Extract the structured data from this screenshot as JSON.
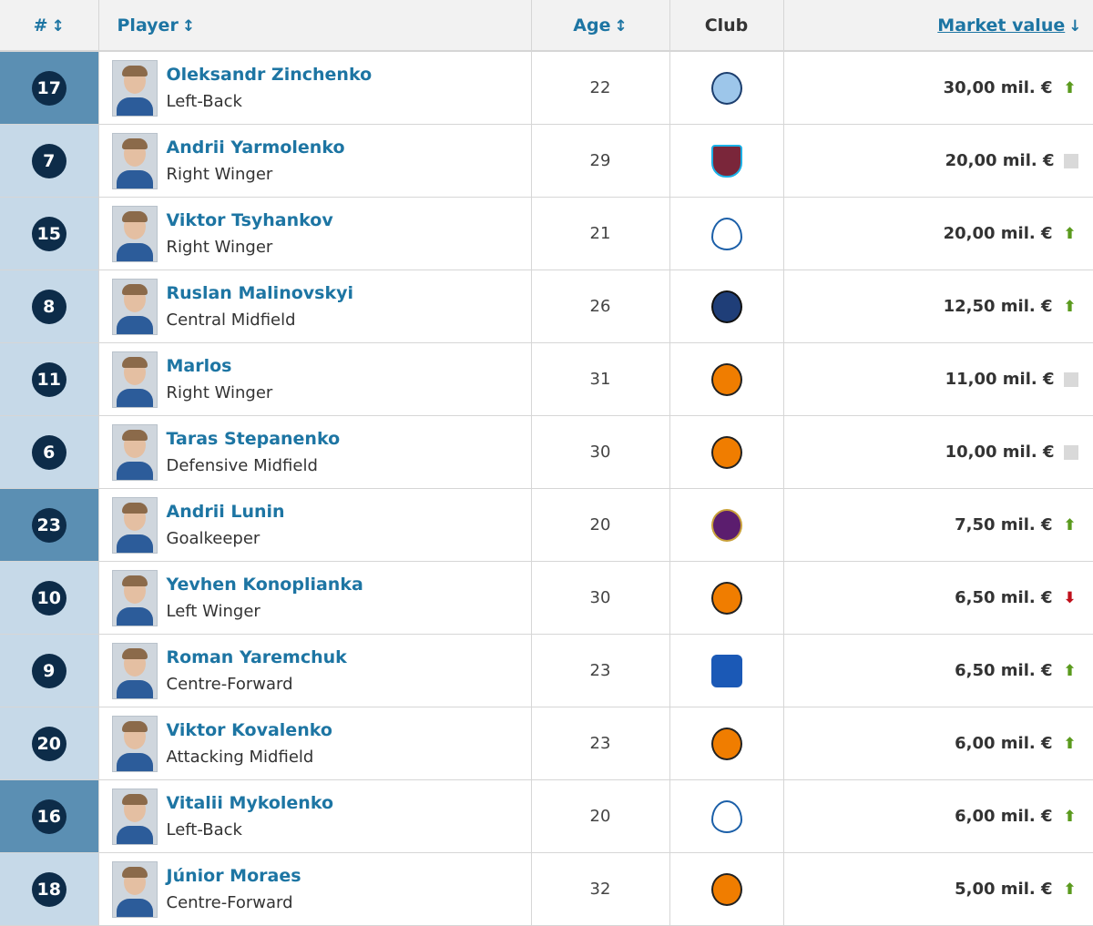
{
  "header": {
    "num_label": "#",
    "player_label": "Player",
    "age_label": "Age",
    "club_label": "Club",
    "market_value_label": "Market value",
    "sort_icon": "↕",
    "sort_desc_icon": "↓"
  },
  "rows": [
    {
      "number": "17",
      "name": "Oleksandr Zinchenko",
      "position": "Left-Back",
      "age": "22",
      "club": "mancity",
      "club_icon": "manchester-city-crest",
      "value": "30,00 mil. €",
      "trend": "up",
      "dark": true
    },
    {
      "number": "7",
      "name": "Andrii Yarmolenko",
      "position": "Right Winger",
      "age": "29",
      "club": "westham",
      "club_icon": "west-ham-crest",
      "value": "20,00 mil. €",
      "trend": "same",
      "dark": false
    },
    {
      "number": "15",
      "name": "Viktor Tsyhankov",
      "position": "Right Winger",
      "age": "21",
      "club": "dynamo",
      "club_icon": "dynamo-kyiv-crest",
      "value": "20,00 mil. €",
      "trend": "up",
      "dark": false
    },
    {
      "number": "8",
      "name": "Ruslan Malinovskyi",
      "position": "Central Midfield",
      "age": "26",
      "club": "atalanta",
      "club_icon": "atalanta-crest",
      "value": "12,50 mil. €",
      "trend": "up",
      "dark": false
    },
    {
      "number": "11",
      "name": "Marlos",
      "position": "Right Winger",
      "age": "31",
      "club": "shakhtar",
      "club_icon": "shakhtar-crest",
      "value": "11,00 mil. €",
      "trend": "same",
      "dark": false
    },
    {
      "number": "6",
      "name": "Taras Stepanenko",
      "position": "Defensive Midfield",
      "age": "30",
      "club": "shakhtar",
      "club_icon": "shakhtar-crest",
      "value": "10,00 mil. €",
      "trend": "same",
      "dark": false
    },
    {
      "number": "23",
      "name": "Andrii Lunin",
      "position": "Goalkeeper",
      "age": "20",
      "club": "valladolid",
      "club_icon": "real-valladolid-crest",
      "value": "7,50 mil. €",
      "trend": "up",
      "dark": true
    },
    {
      "number": "10",
      "name": "Yevhen Konoplianka",
      "position": "Left Winger",
      "age": "30",
      "club": "shakhtar",
      "club_icon": "shakhtar-crest",
      "value": "6,50 mil. €",
      "trend": "down",
      "dark": false
    },
    {
      "number": "9",
      "name": "Roman Yaremchuk",
      "position": "Centre-Forward",
      "age": "23",
      "club": "gent",
      "club_icon": "kaa-gent-crest",
      "value": "6,50 mil. €",
      "trend": "up",
      "dark": false
    },
    {
      "number": "20",
      "name": "Viktor Kovalenko",
      "position": "Attacking Midfield",
      "age": "23",
      "club": "shakhtar",
      "club_icon": "shakhtar-crest",
      "value": "6,00 mil. €",
      "trend": "up",
      "dark": false
    },
    {
      "number": "16",
      "name": "Vitalii Mykolenko",
      "position": "Left-Back",
      "age": "20",
      "club": "dynamo",
      "club_icon": "dynamo-kyiv-crest",
      "value": "6,00 mil. €",
      "trend": "up",
      "dark": true
    },
    {
      "number": "18",
      "name": "Júnior Moraes",
      "position": "Centre-Forward",
      "age": "32",
      "club": "shakhtar",
      "club_icon": "shakhtar-crest",
      "value": "5,00 mil. €",
      "trend": "up",
      "dark": false
    }
  ]
}
